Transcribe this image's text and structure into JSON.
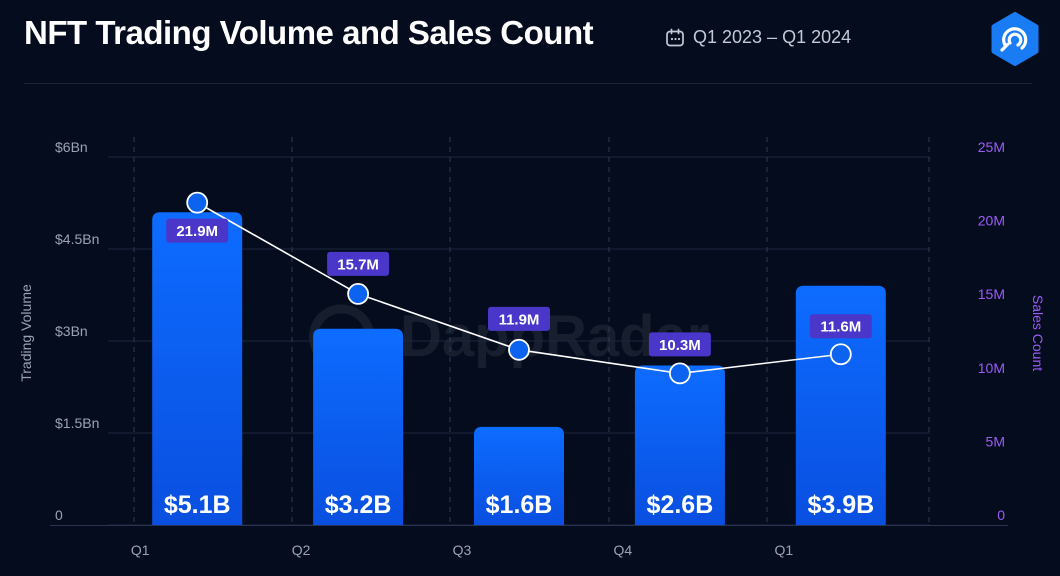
{
  "header": {
    "title": "NFT Trading Volume and Sales Count",
    "date_range": "Q1 2023 – Q1 2024",
    "calendar_icon": "calendar-icon",
    "logo_icon": "dappradar-logo-icon"
  },
  "watermark": "DappRadar",
  "colors": {
    "background": "#050c1d",
    "bar_top": "#0d6cff",
    "bar_bottom": "#0a4fe0",
    "line": "#ffffff",
    "label_box": "#4a37c9",
    "right_axis_text": "#9b5cf6",
    "left_axis_text": "#9aa3b5"
  },
  "chart_data": {
    "type": "bar",
    "categories": [
      "Q1",
      "Q2",
      "Q3",
      "Q4",
      "Q1"
    ],
    "series": [
      {
        "name": "Trading Volume",
        "type": "bar",
        "axis": "left",
        "values": [
          5.1,
          3.2,
          1.6,
          2.6,
          3.9
        ],
        "labels": [
          "$5.1B",
          "$3.2B",
          "$1.6B",
          "$2.6B",
          "$3.9B"
        ]
      },
      {
        "name": "Sales Count",
        "type": "line",
        "axis": "right",
        "values": [
          21.9,
          15.7,
          11.9,
          10.3,
          11.6
        ],
        "labels": [
          "21.9M",
          "15.7M",
          "11.9M",
          "10.3M",
          "11.6M"
        ]
      }
    ],
    "ylabel": "Trading Volume",
    "y2label": "Sales Count",
    "ylim": [
      0,
      6
    ],
    "y2lim": [
      0,
      25
    ],
    "yticks": [
      0,
      1.5,
      3,
      4.5,
      6
    ],
    "ytick_labels": [
      "0",
      "$1.5Bn",
      "$3Bn",
      "$4.5Bn",
      "$6Bn"
    ],
    "y2ticks": [
      0,
      5,
      10,
      15,
      20,
      25
    ],
    "y2tick_labels": [
      "0",
      "5M",
      "10M",
      "15M",
      "20M",
      "25M"
    ],
    "grid": true
  }
}
